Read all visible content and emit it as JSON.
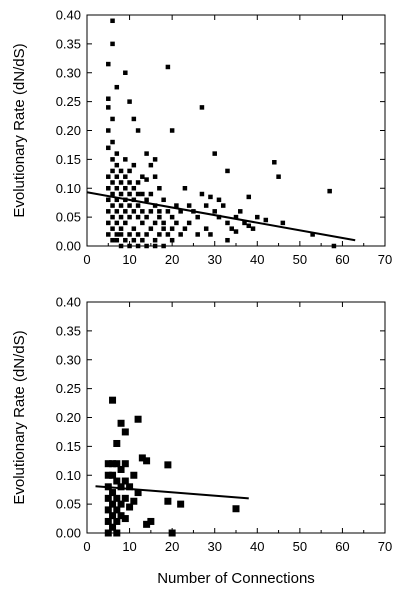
{
  "chart_data": [
    {
      "type": "scatter",
      "title": "",
      "xlabel": "",
      "ylabel": "Evolutionary Rate (dN/dS)",
      "xlim": [
        0,
        70
      ],
      "ylim": [
        0,
        0.4
      ],
      "xticks": [
        "0",
        "10",
        "20",
        "30",
        "40",
        "50",
        "60",
        "70"
      ],
      "yticks": [
        "0.00",
        "0.05",
        "0.10",
        "0.15",
        "0.20",
        "0.25",
        "0.30",
        "0.35",
        "0.40"
      ],
      "legend": "none",
      "grid": false,
      "marker_color": "#000000",
      "series": [
        {
          "points": [
            [
              5,
              0.315
            ],
            [
              5,
              0.255
            ],
            [
              5,
              0.24
            ],
            [
              6,
              0.39
            ],
            [
              6,
              0.35
            ],
            [
              7,
              0.275
            ],
            [
              6,
              0.22
            ],
            [
              5,
              0.2
            ],
            [
              6,
              0.18
            ],
            [
              5,
              0.17
            ],
            [
              9,
              0.3
            ],
            [
              10,
              0.25
            ],
            [
              11,
              0.22
            ],
            [
              12,
              0.2
            ],
            [
              19,
              0.31
            ],
            [
              27,
              0.24
            ],
            [
              20,
              0.2
            ],
            [
              30,
              0.16
            ],
            [
              14,
              0.16
            ],
            [
              16,
              0.15
            ],
            [
              33,
              0.13
            ],
            [
              44,
              0.145
            ],
            [
              45,
              0.12
            ],
            [
              57,
              0.095
            ],
            [
              38,
              0.085
            ],
            [
              40,
              0.05
            ],
            [
              42,
              0.045
            ],
            [
              34,
              0.03
            ],
            [
              36,
              0.06
            ],
            [
              35,
              0.05
            ],
            [
              30,
              0.06
            ],
            [
              28,
              0.07
            ],
            [
              29,
              0.085
            ],
            [
              26,
              0.05
            ],
            [
              24,
              0.04
            ],
            [
              22,
              0.02
            ],
            [
              25,
              0.06
            ],
            [
              33,
              0.01
            ],
            [
              35,
              0.025
            ],
            [
              38,
              0.035
            ],
            [
              37,
              0.04
            ],
            [
              32,
              0.07
            ],
            [
              31,
              0.08
            ],
            [
              27,
              0.09
            ],
            [
              23,
              0.1
            ],
            [
              21,
              0.07
            ],
            [
              19,
              0.06
            ],
            [
              18,
              0.08
            ],
            [
              17,
              0.1
            ],
            [
              16,
              0.12
            ],
            [
              15,
              0.14
            ],
            [
              14,
              0.115
            ],
            [
              13,
              0.09
            ],
            [
              12,
              0.07
            ],
            [
              11,
              0.06
            ],
            [
              10,
              0.05
            ],
            [
              9,
              0.04
            ],
            [
              8,
              0.03
            ],
            [
              7,
              0.02
            ],
            [
              6,
              0.01
            ],
            [
              5,
              0.02
            ],
            [
              5,
              0.04
            ],
            [
              5,
              0.06
            ],
            [
              5,
              0.08
            ],
            [
              5,
              0.1
            ],
            [
              5,
              0.12
            ],
            [
              6,
              0.03
            ],
            [
              6,
              0.05
            ],
            [
              6,
              0.07
            ],
            [
              6,
              0.09
            ],
            [
              6,
              0.11
            ],
            [
              6,
              0.13
            ],
            [
              6,
              0.15
            ],
            [
              7,
              0.01
            ],
            [
              7,
              0.04
            ],
            [
              7,
              0.06
            ],
            [
              7,
              0.08
            ],
            [
              7,
              0.1
            ],
            [
              7,
              0.12
            ],
            [
              7,
              0.14
            ],
            [
              7,
              0.16
            ],
            [
              8,
              0.02
            ],
            [
              8,
              0.05
            ],
            [
              8,
              0.07
            ],
            [
              8,
              0.09
            ],
            [
              8,
              0.11
            ],
            [
              8,
              0.13
            ],
            [
              9,
              0.01
            ],
            [
              9,
              0.06
            ],
            [
              9,
              0.08
            ],
            [
              9,
              0.1
            ],
            [
              9,
              0.12
            ],
            [
              9,
              0.15
            ],
            [
              10,
              0.02
            ],
            [
              10,
              0.07
            ],
            [
              10,
              0.09
            ],
            [
              10,
              0.11
            ],
            [
              10,
              0.13
            ],
            [
              11,
              0.01
            ],
            [
              11,
              0.03
            ],
            [
              11,
              0.08
            ],
            [
              11,
              0.1
            ],
            [
              11,
              0.14
            ],
            [
              12,
              0.02
            ],
            [
              12,
              0.05
            ],
            [
              12,
              0.09
            ],
            [
              12,
              0.11
            ],
            [
              13,
              0.01
            ],
            [
              13,
              0.04
            ],
            [
              13,
              0.06
            ],
            [
              13,
              0.12
            ],
            [
              14,
              0.02
            ],
            [
              14,
              0.05
            ],
            [
              14,
              0.08
            ],
            [
              15,
              0.03
            ],
            [
              15,
              0.06
            ],
            [
              15,
              0.09
            ],
            [
              16,
              0.01
            ],
            [
              16,
              0.04
            ],
            [
              16,
              0.07
            ],
            [
              17,
              0.02
            ],
            [
              17,
              0.05
            ],
            [
              17,
              0.06
            ],
            [
              18,
              0.03
            ],
            [
              18,
              0.04
            ],
            [
              19,
              0.02
            ],
            [
              20,
              0.03
            ],
            [
              20,
              0.05
            ],
            [
              21,
              0.04
            ],
            [
              22,
              0.06
            ],
            [
              23,
              0.03
            ],
            [
              24,
              0.07
            ],
            [
              26,
              0.02
            ],
            [
              28,
              0.03
            ],
            [
              29,
              0.02
            ],
            [
              31,
              0.05
            ],
            [
              33,
              0.04
            ],
            [
              39,
              0.03
            ],
            [
              46,
              0.04
            ],
            [
              53,
              0.02
            ],
            [
              58,
              0.0
            ],
            [
              12,
              0.0
            ],
            [
              14,
              0.0
            ],
            [
              16,
              0.0
            ],
            [
              18,
              0.0
            ],
            [
              20,
              0.01
            ],
            [
              10,
              0.0
            ],
            [
              8,
              0.0
            ]
          ]
        },
        {
          "type": "line",
          "points": [
            [
              0,
              0.093
            ],
            [
              63,
              0.01
            ]
          ]
        }
      ]
    },
    {
      "type": "scatter",
      "title": "",
      "xlabel": "Number of Connections",
      "ylabel": "Evolutionary Rate (dN/dS)",
      "xlim": [
        0,
        70
      ],
      "ylim": [
        0,
        0.4
      ],
      "xticks": [
        "0",
        "10",
        "20",
        "30",
        "40",
        "50",
        "60",
        "70"
      ],
      "yticks": [
        "0.00",
        "0.05",
        "0.10",
        "0.15",
        "0.20",
        "0.25",
        "0.30",
        "0.35",
        "0.40"
      ],
      "legend": "none",
      "grid": false,
      "marker_color": "#000000",
      "series": [
        {
          "points": [
            [
              6,
              0.23
            ],
            [
              8,
              0.19
            ],
            [
              9,
              0.175
            ],
            [
              12,
              0.197
            ],
            [
              7,
              0.155
            ],
            [
              13,
              0.13
            ],
            [
              14,
              0.125
            ],
            [
              19,
              0.118
            ],
            [
              5,
              0.12
            ],
            [
              6,
              0.12
            ],
            [
              7,
              0.12
            ],
            [
              8,
              0.11
            ],
            [
              9,
              0.12
            ],
            [
              10,
              0.08
            ],
            [
              11,
              0.1
            ],
            [
              12,
              0.07
            ],
            [
              5,
              0.1
            ],
            [
              5,
              0.08
            ],
            [
              5,
              0.06
            ],
            [
              5,
              0.04
            ],
            [
              5,
              0.02
            ],
            [
              6,
              0.1
            ],
            [
              6,
              0.07
            ],
            [
              6,
              0.05
            ],
            [
              6,
              0.03
            ],
            [
              6,
              0.01
            ],
            [
              7,
              0.09
            ],
            [
              7,
              0.06
            ],
            [
              7,
              0.04
            ],
            [
              7,
              0.02
            ],
            [
              8,
              0.08
            ],
            [
              8,
              0.05
            ],
            [
              8,
              0.03
            ],
            [
              9,
              0.09
            ],
            [
              9,
              0.06
            ],
            [
              9,
              0.025
            ],
            [
              10,
              0.045
            ],
            [
              11,
              0.055
            ],
            [
              14,
              0.015
            ],
            [
              15,
              0.02
            ],
            [
              19,
              0.055
            ],
            [
              22,
              0.05
            ],
            [
              35,
              0.042
            ],
            [
              20,
              0.0
            ],
            [
              5,
              0.0
            ],
            [
              7,
              0.0
            ]
          ]
        },
        {
          "type": "line",
          "points": [
            [
              2,
              0.081
            ],
            [
              38,
              0.06
            ]
          ]
        }
      ]
    }
  ]
}
